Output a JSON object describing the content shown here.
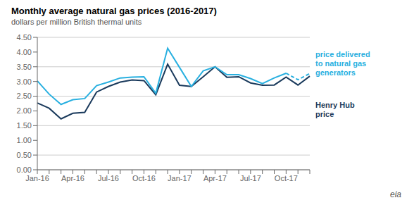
{
  "chart_data": {
    "type": "line",
    "title": "Monthly average natural gas prices (2016-2017)",
    "subtitle": "dollars per million British thermal units",
    "categories": [
      "Jan-16",
      null,
      null,
      "Apr-16",
      null,
      null,
      "Jul-16",
      null,
      null,
      "Oct-16",
      null,
      null,
      "Jan-17",
      null,
      null,
      "Apr-17",
      null,
      null,
      "Jul-17",
      null,
      null,
      "Oct-17",
      null,
      null
    ],
    "series": [
      {
        "color": "#1a3a5c",
        "line_style": "solid",
        "values": [
          2.27,
          2.09,
          1.73,
          1.92,
          1.95,
          2.64,
          2.83,
          2.98,
          3.05,
          3.03,
          2.55,
          3.59,
          2.87,
          2.83,
          3.16,
          3.5,
          3.14,
          3.16,
          2.95,
          2.87,
          2.88,
          3.15,
          2.88,
          3.18
        ]
      },
      {
        "color": "#29b0e0",
        "line_style": "solid",
        "values": [
          3.02,
          2.57,
          2.22,
          2.38,
          2.42,
          2.86,
          2.98,
          3.12,
          3.15,
          3.16,
          2.6,
          4.13,
          3.48,
          2.83,
          3.36,
          3.5,
          3.23,
          3.23,
          3.1,
          2.93,
          3.12,
          3.28,
          null,
          null
        ]
      },
      {
        "color": "#29b0e0",
        "line_style": "dashed",
        "values": [
          null,
          null,
          null,
          null,
          null,
          null,
          null,
          null,
          null,
          null,
          null,
          null,
          null,
          null,
          null,
          null,
          null,
          null,
          null,
          null,
          null,
          3.28,
          3.06,
          3.27
        ]
      }
    ],
    "ylim": [
      0,
      4.5
    ],
    "yticks": [
      {
        "value": 0.0,
        "label": "0.00"
      },
      {
        "value": 0.5,
        "label": "0.50"
      },
      {
        "value": 1.0,
        "label": "1.00"
      },
      {
        "value": 1.5,
        "label": "1.50"
      },
      {
        "value": 2.0,
        "label": "2.00"
      },
      {
        "value": 2.5,
        "label": "2.50"
      },
      {
        "value": 3.0,
        "label": "3.00"
      },
      {
        "value": 3.5,
        "label": "3.50"
      },
      {
        "value": 4.0,
        "label": "4.00"
      },
      {
        "value": 4.5,
        "label": "4.50"
      }
    ],
    "grid": true,
    "annotations": [
      {
        "text": "price delivered\nto natural gas\ngenerators",
        "color": "#29b0e0"
      },
      {
        "text": "Henry Hub\nprice",
        "color": "#1a3a5c"
      },
      {
        "text": "eia",
        "color": "#555555"
      }
    ]
  }
}
